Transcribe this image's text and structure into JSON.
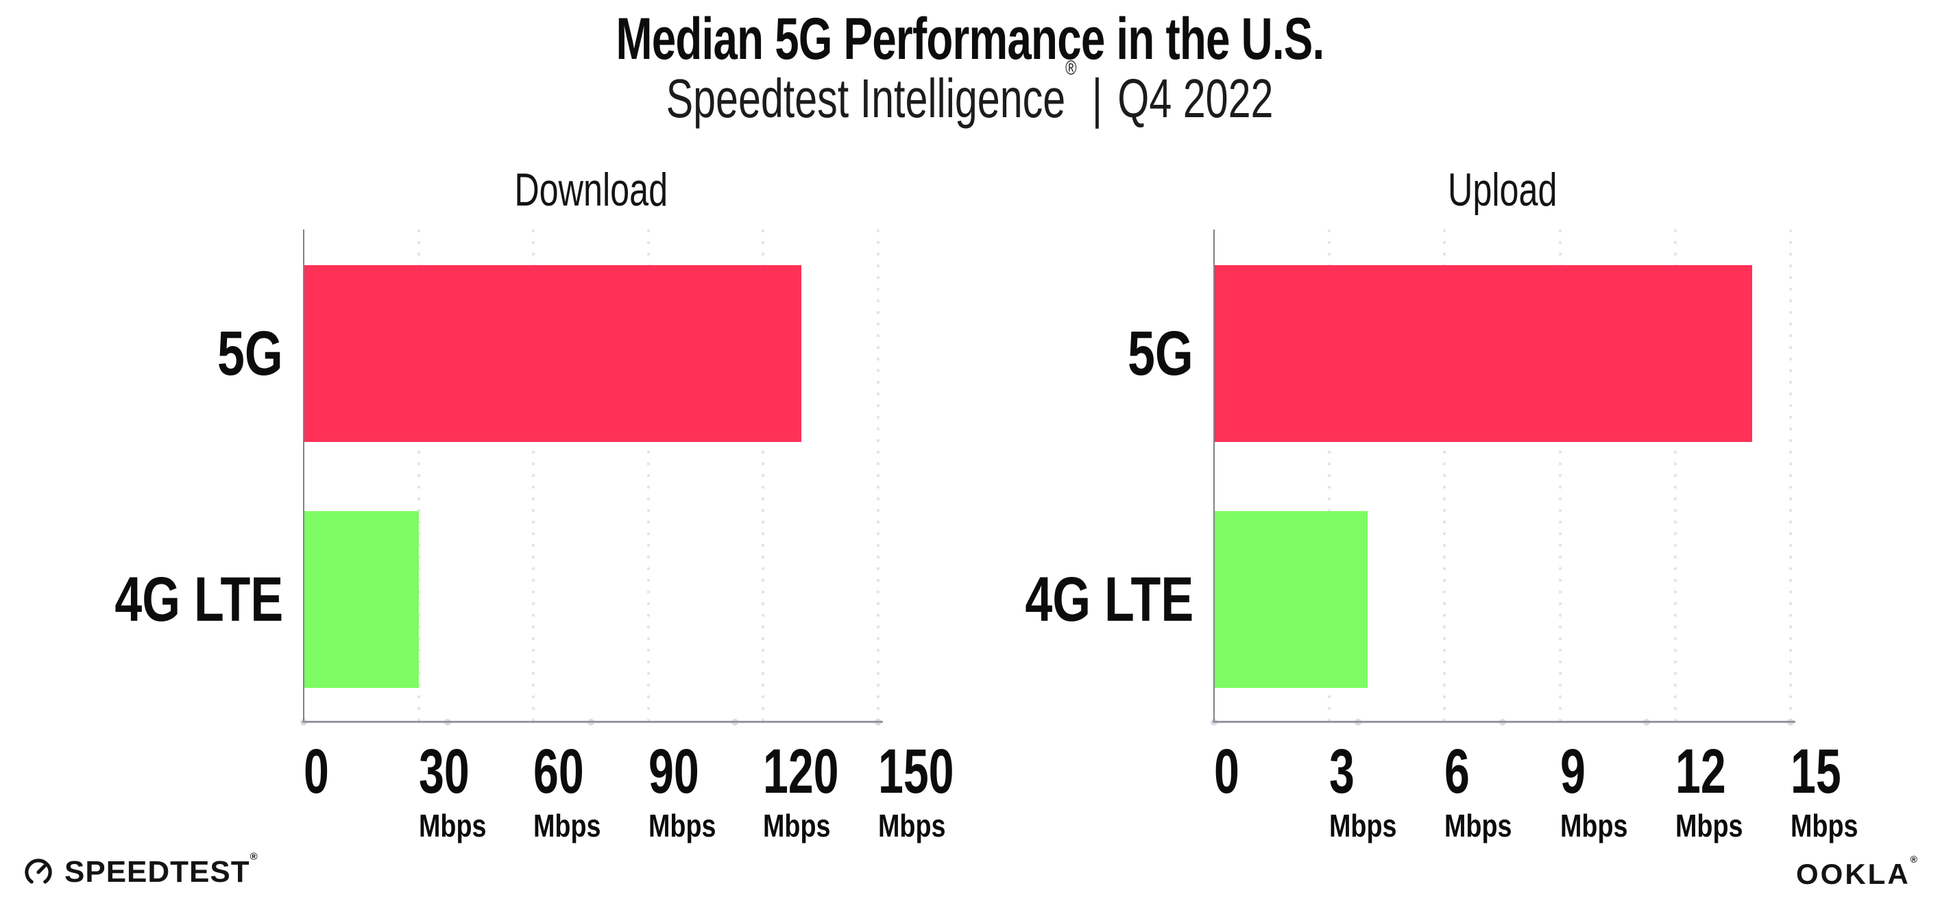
{
  "header": {
    "title": "Median 5G Performance in the U.S.",
    "subtitle_brand": "Speedtest Intelligence",
    "subtitle_registered": "®",
    "subtitle_divider": "|",
    "subtitle_period": "Q4 2022"
  },
  "footer": {
    "speedtest_logo_text": "SPEEDTEST",
    "speedtest_registered": "®",
    "ookla_logo_text": "OOKLA",
    "ookla_registered": "®"
  },
  "colors": {
    "bar_5g": "#ff3156",
    "bar_4g_lte": "#7dfc63",
    "axis_line": "#96979e",
    "grid_dot": "#e4e4ee",
    "text": "#0c0c0c",
    "background": "#ffffff"
  },
  "chart_data": [
    {
      "type": "bar",
      "orientation": "horizontal",
      "title": "Download",
      "categories": [
        "5G",
        "4G LTE"
      ],
      "values": [
        130,
        30
      ],
      "unit": "Mbps",
      "xlim": [
        0,
        150
      ],
      "xticks": [
        0,
        30,
        60,
        90,
        120,
        150
      ],
      "tick_unit_label": "Mbps",
      "bar_colors": [
        "#ff3156",
        "#7dfc63"
      ],
      "grid": "dotted vertical gridlines",
      "legend": "none",
      "data_labels": "none"
    },
    {
      "type": "bar",
      "orientation": "horizontal",
      "title": "Upload",
      "categories": [
        "5G",
        "4G LTE"
      ],
      "values": [
        14,
        4
      ],
      "unit": "Mbps",
      "xlim": [
        0,
        15
      ],
      "xticks": [
        0,
        3,
        6,
        9,
        12,
        15
      ],
      "tick_unit_label": "Mbps",
      "bar_colors": [
        "#ff3156",
        "#7dfc63"
      ],
      "grid": "dotted vertical gridlines",
      "legend": "none",
      "data_labels": "none"
    }
  ]
}
